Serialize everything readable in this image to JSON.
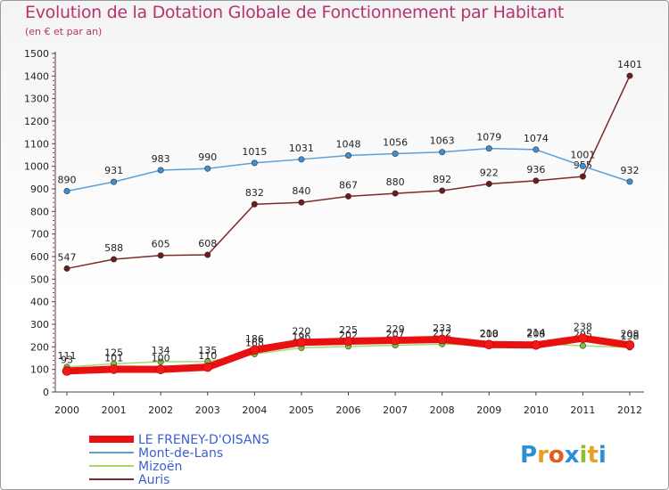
{
  "header": {
    "title": "Evolution de la Dotation Globale de Fonctionnement par Habitant",
    "subtitle": "(en € et par an)"
  },
  "logo": {
    "text": "Proxiti",
    "letters": [
      {
        "ch": "P",
        "color": "#2e8fd6"
      },
      {
        "ch": "r",
        "color": "#e8a11f"
      },
      {
        "ch": "o",
        "color": "#e35d1c"
      },
      {
        "ch": "x",
        "color": "#2e8fd6"
      },
      {
        "ch": "i",
        "color": "#8fbf2a"
      },
      {
        "ch": "t",
        "color": "#e8a11f"
      },
      {
        "ch": "i",
        "color": "#2e8fd6"
      }
    ]
  },
  "chart_data": {
    "type": "line",
    "title": "Evolution de la Dotation Globale de Fonctionnement par Habitant",
    "subtitle": "(en € et par an)",
    "xlabel": "",
    "ylabel": "",
    "ylim": [
      0,
      1500
    ],
    "ytick_step": 100,
    "grid": false,
    "legend_position": "bottom-left",
    "x": [
      "2000",
      "2001",
      "2002",
      "2003",
      "2004",
      "2005",
      "2006",
      "2007",
      "2008",
      "2009",
      "2010",
      "2011",
      "2012"
    ],
    "y_ticks": [
      "0",
      "100",
      "200",
      "300",
      "400",
      "500",
      "600",
      "700",
      "800",
      "900",
      "1000",
      "1100",
      "1200",
      "1300",
      "1400",
      "1500"
    ],
    "series": [
      {
        "name": "Auris",
        "color": "#7a2a2a",
        "marker_color": "#6b1d1d",
        "width": 1.5,
        "values": [
          547,
          588,
          605,
          608,
          832,
          840,
          867,
          880,
          892,
          922,
          936,
          955,
          1401
        ],
        "labels": [
          "547",
          "588",
          "605",
          "608",
          "832",
          "840",
          "867",
          "880",
          "892",
          "922",
          "936",
          "955",
          "1401"
        ]
      },
      {
        "name": "Mont-de-Lans",
        "color": "#5d9fd6",
        "marker_color": "#3f8fd0",
        "width": 1.5,
        "values": [
          890,
          931,
          983,
          990,
          1015,
          1031,
          1048,
          1056,
          1063,
          1079,
          1074,
          1001,
          932
        ],
        "labels": [
          "890",
          "931",
          "983",
          "990",
          "1015",
          "1031",
          "1048",
          "1056",
          "1063",
          "1079",
          "1074",
          "1001",
          "932"
        ]
      },
      {
        "name": "Mizoën",
        "color": "#a6d86b",
        "marker_color": "#7dc23b",
        "width": 1.5,
        "values": [
          111,
          125,
          134,
          135,
          168,
          196,
          202,
          207,
          212,
          208,
          214,
          205,
          198
        ],
        "labels": [
          "111",
          "125",
          "134",
          "135",
          "168",
          "196",
          "202",
          "207",
          "212",
          "208",
          "214",
          "205",
          "198"
        ]
      },
      {
        "name": "LE FRENEY-D'OISANS",
        "color": "#e81010",
        "marker_color": "#ee1a1a",
        "width": 8,
        "values": [
          93,
          101,
          100,
          110,
          186,
          220,
          225,
          229,
          233,
          210,
          208,
          238,
          208
        ],
        "labels": [
          "93",
          "101",
          "100",
          "110",
          "186",
          "220",
          "225",
          "229",
          "233",
          "210",
          "208",
          "238",
          "208"
        ]
      }
    ],
    "legend": [
      {
        "name": "LE FRENEY-D'OISANS",
        "color": "#e81010",
        "width": 8
      },
      {
        "name": "Mont-de-Lans",
        "color": "#5d9fd6",
        "width": 2
      },
      {
        "name": "Mizoën",
        "color": "#a6d86b",
        "width": 2
      },
      {
        "name": "Auris",
        "color": "#7a2a2a",
        "width": 2
      }
    ]
  }
}
